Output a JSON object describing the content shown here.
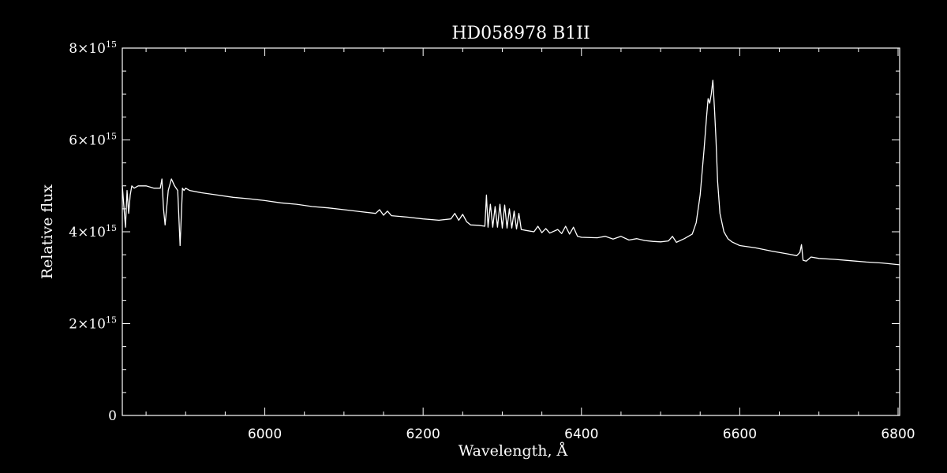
{
  "chart_data": {
    "type": "line",
    "title": "HD058978   B1II",
    "xlabel": "Wavelength, Å",
    "ylabel": "Relative flux",
    "xlim": [
      5820,
      6802
    ],
    "ylim": [
      0,
      8000000000000000.0
    ],
    "grid": false,
    "colors": {
      "background": "#000000",
      "foreground": "#ffffff"
    },
    "x_ticks": [
      {
        "value": 6000,
        "label": "6000"
      },
      {
        "value": 6200,
        "label": "6200"
      },
      {
        "value": 6400,
        "label": "6400"
      },
      {
        "value": 6600,
        "label": "6600"
      },
      {
        "value": 6800,
        "label": "6800"
      }
    ],
    "y_ticks": [
      {
        "value": 0,
        "mant": "0",
        "exp": ""
      },
      {
        "value": 2000000000000000.0,
        "mant": "2×10",
        "exp": "15"
      },
      {
        "value": 4000000000000000.0,
        "mant": "4×10",
        "exp": "15"
      },
      {
        "value": 6000000000000000.0,
        "mant": "6×10",
        "exp": "15"
      },
      {
        "value": 8000000000000000.0,
        "mant": "8×10",
        "exp": "15"
      }
    ],
    "series": [
      {
        "x": [
          5820,
          5824,
          5826,
          5828,
          5830,
          5832,
          5835,
          5840,
          5850,
          5860,
          5868,
          5870,
          5872,
          5874,
          5878,
          5882,
          5886,
          5888,
          5890,
          5893,
          5896,
          5898,
          5900,
          5905,
          5920,
          5940,
          5960,
          5980,
          6000,
          6020,
          6040,
          6060,
          6080,
          6100,
          6120,
          6140,
          6145,
          6150,
          6155,
          6160,
          6180,
          6200,
          6220,
          6235,
          6240,
          6245,
          6250,
          6255,
          6260,
          6270,
          6278,
          6280,
          6282,
          6285,
          6288,
          6291,
          6294,
          6297,
          6300,
          6303,
          6306,
          6309,
          6312,
          6315,
          6318,
          6321,
          6324,
          6330,
          6340,
          6345,
          6350,
          6355,
          6360,
          6370,
          6375,
          6380,
          6385,
          6390,
          6395,
          6400,
          6420,
          6430,
          6440,
          6450,
          6460,
          6470,
          6480,
          6490,
          6500,
          6510,
          6515,
          6520,
          6530,
          6540,
          6545,
          6550,
          6555,
          6558,
          6560,
          6562,
          6564,
          6566,
          6568,
          6570,
          6572,
          6575,
          6580,
          6585,
          6590,
          6600,
          6620,
          6640,
          6660,
          6672,
          6676,
          6678,
          6680,
          6684,
          6690,
          6700,
          6720,
          6740,
          6760,
          6780,
          6802
        ],
        "values": [
          5000000000000000.0,
          4100000000000000.0,
          4900000000000000.0,
          4400000000000000.0,
          4800000000000000.0,
          5000000000000000.0,
          4950000000000000.0,
          5000000000000000.0,
          5000000000000000.0,
          4950000000000000.0,
          4950000000000000.0,
          5150000000000000.0,
          4500000000000000.0,
          4150000000000000.0,
          4900000000000000.0,
          5150000000000000.0,
          5000000000000000.0,
          4950000000000000.0,
          4900000000000000.0,
          3700000000000000.0,
          4950000000000000.0,
          4900000000000000.0,
          4950000000000000.0,
          4900000000000000.0,
          4850000000000000.0,
          4800000000000000.0,
          4750000000000000.0,
          4720000000000000.0,
          4680000000000000.0,
          4630000000000000.0,
          4600000000000000.0,
          4550000000000000.0,
          4520000000000000.0,
          4480000000000000.0,
          4440000000000000.0,
          4400000000000000.0,
          4480000000000000.0,
          4360000000000000.0,
          4450000000000000.0,
          4350000000000000.0,
          4320000000000000.0,
          4280000000000000.0,
          4250000000000000.0,
          4280000000000000.0,
          4400000000000000.0,
          4250000000000000.0,
          4380000000000000.0,
          4220000000000000.0,
          4150000000000000.0,
          4140000000000000.0,
          4120000000000000.0,
          4800000000000000.0,
          4100000000000000.0,
          4600000000000000.0,
          4100000000000000.0,
          4550000000000000.0,
          4100000000000000.0,
          4600000000000000.0,
          4080000000000000.0,
          4580000000000000.0,
          4080000000000000.0,
          4500000000000000.0,
          4080000000000000.0,
          4450000000000000.0,
          4060000000000000.0,
          4400000000000000.0,
          4050000000000000.0,
          4030000000000000.0,
          4000000000000000.0,
          4120000000000000.0,
          3980000000000000.0,
          4070000000000000.0,
          3970000000000000.0,
          4050000000000000.0,
          3960000000000000.0,
          4120000000000000.0,
          3950000000000000.0,
          4100000000000000.0,
          3900000000000000.0,
          3880000000000000.0,
          3870000000000000.0,
          3900000000000000.0,
          3840000000000000.0,
          3900000000000000.0,
          3820000000000000.0,
          3850000000000000.0,
          3810000000000000.0,
          3790000000000000.0,
          3780000000000000.0,
          3800000000000000.0,
          3900000000000000.0,
          3770000000000000.0,
          3850000000000000.0,
          3950000000000000.0,
          4200000000000000.0,
          4800000000000000.0,
          5800000000000000.0,
          6500000000000000.0,
          6900000000000000.0,
          6800000000000000.0,
          7000000000000000.0,
          7300000000000000.0,
          6700000000000000.0,
          6000000000000000.0,
          5100000000000000.0,
          4400000000000000.0,
          4000000000000000.0,
          3850000000000000.0,
          3780000000000000.0,
          3700000000000000.0,
          3650000000000000.0,
          3580000000000000.0,
          3520000000000000.0,
          3480000000000000.0,
          3550000000000000.0,
          3720000000000000.0,
          3380000000000000.0,
          3360000000000000.0,
          3450000000000000.0,
          3420000000000000.0,
          3400000000000000.0,
          3370000000000000.0,
          3340000000000000.0,
          3320000000000000.0,
          3280000000000000.0
        ]
      }
    ]
  }
}
